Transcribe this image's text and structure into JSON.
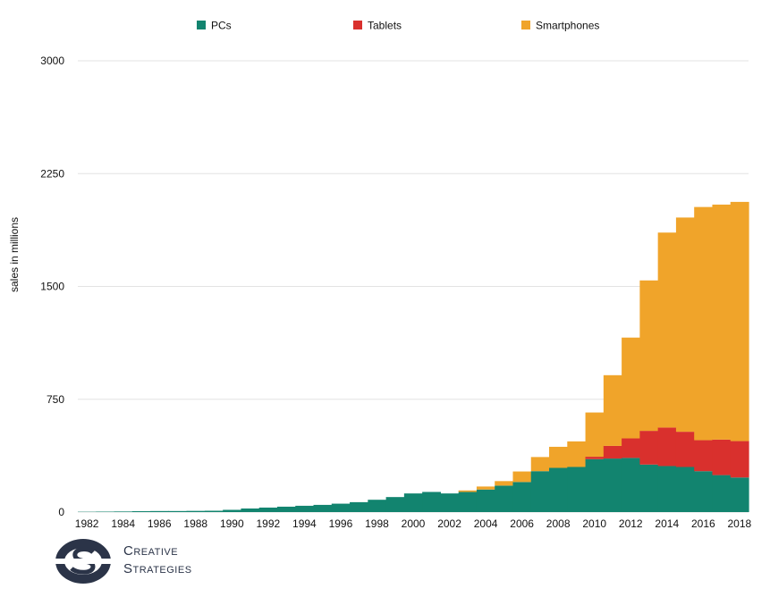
{
  "chart_data": {
    "type": "stacked-area",
    "title": "",
    "xlabel": "",
    "ylabel": "sales in millions",
    "ylim": [
      0,
      3000
    ],
    "yticks": [
      0,
      750,
      1500,
      2250,
      3000
    ],
    "xticks": [
      "1982",
      "1984",
      "1986",
      "1988",
      "1990",
      "1992",
      "1994",
      "1996",
      "1998",
      "2000",
      "2002",
      "2004",
      "2006",
      "2008",
      "2010",
      "2012",
      "2014",
      "2016",
      "2018"
    ],
    "legend_position": "top",
    "categories": [
      1982,
      1983,
      1984,
      1985,
      1986,
      1987,
      1988,
      1989,
      1990,
      1991,
      1992,
      1993,
      1994,
      1995,
      1996,
      1997,
      1998,
      1999,
      2000,
      2001,
      2002,
      2003,
      2004,
      2005,
      2006,
      2007,
      2008,
      2009,
      2010,
      2011,
      2012,
      2013,
      2014,
      2015,
      2016,
      2017,
      2018
    ],
    "series": [
      {
        "name": "PCs",
        "color": "#12846f",
        "values": [
          2,
          3,
          4,
          6,
          7,
          7,
          8,
          9,
          15,
          24,
          30,
          36,
          42,
          48,
          56,
          66,
          82,
          100,
          124,
          134,
          124,
          134,
          150,
          176,
          200,
          272,
          294,
          300,
          352,
          356,
          360,
          316,
          306,
          300,
          272,
          246,
          230
        ]
      },
      {
        "name": "Tablets",
        "color": "#d9302d",
        "values": [
          0,
          0,
          0,
          0,
          0,
          0,
          0,
          0,
          0,
          0,
          0,
          0,
          0,
          0,
          0,
          0,
          0,
          0,
          0,
          0,
          0,
          0,
          0,
          0,
          0,
          0,
          0,
          0,
          16,
          84,
          130,
          224,
          256,
          234,
          206,
          236,
          242
        ]
      },
      {
        "name": "Smartphones",
        "color": "#f0a42a",
        "values": [
          0,
          0,
          0,
          0,
          0,
          0,
          0,
          0,
          0,
          0,
          0,
          0,
          0,
          0,
          0,
          0,
          0,
          0,
          0,
          0,
          0,
          10,
          20,
          30,
          70,
          94,
          140,
          170,
          294,
          470,
          670,
          1000,
          1296,
          1424,
          1550,
          1562,
          1590
        ]
      }
    ]
  },
  "logo": {
    "line1": "Creative",
    "line2": "Strategies"
  }
}
